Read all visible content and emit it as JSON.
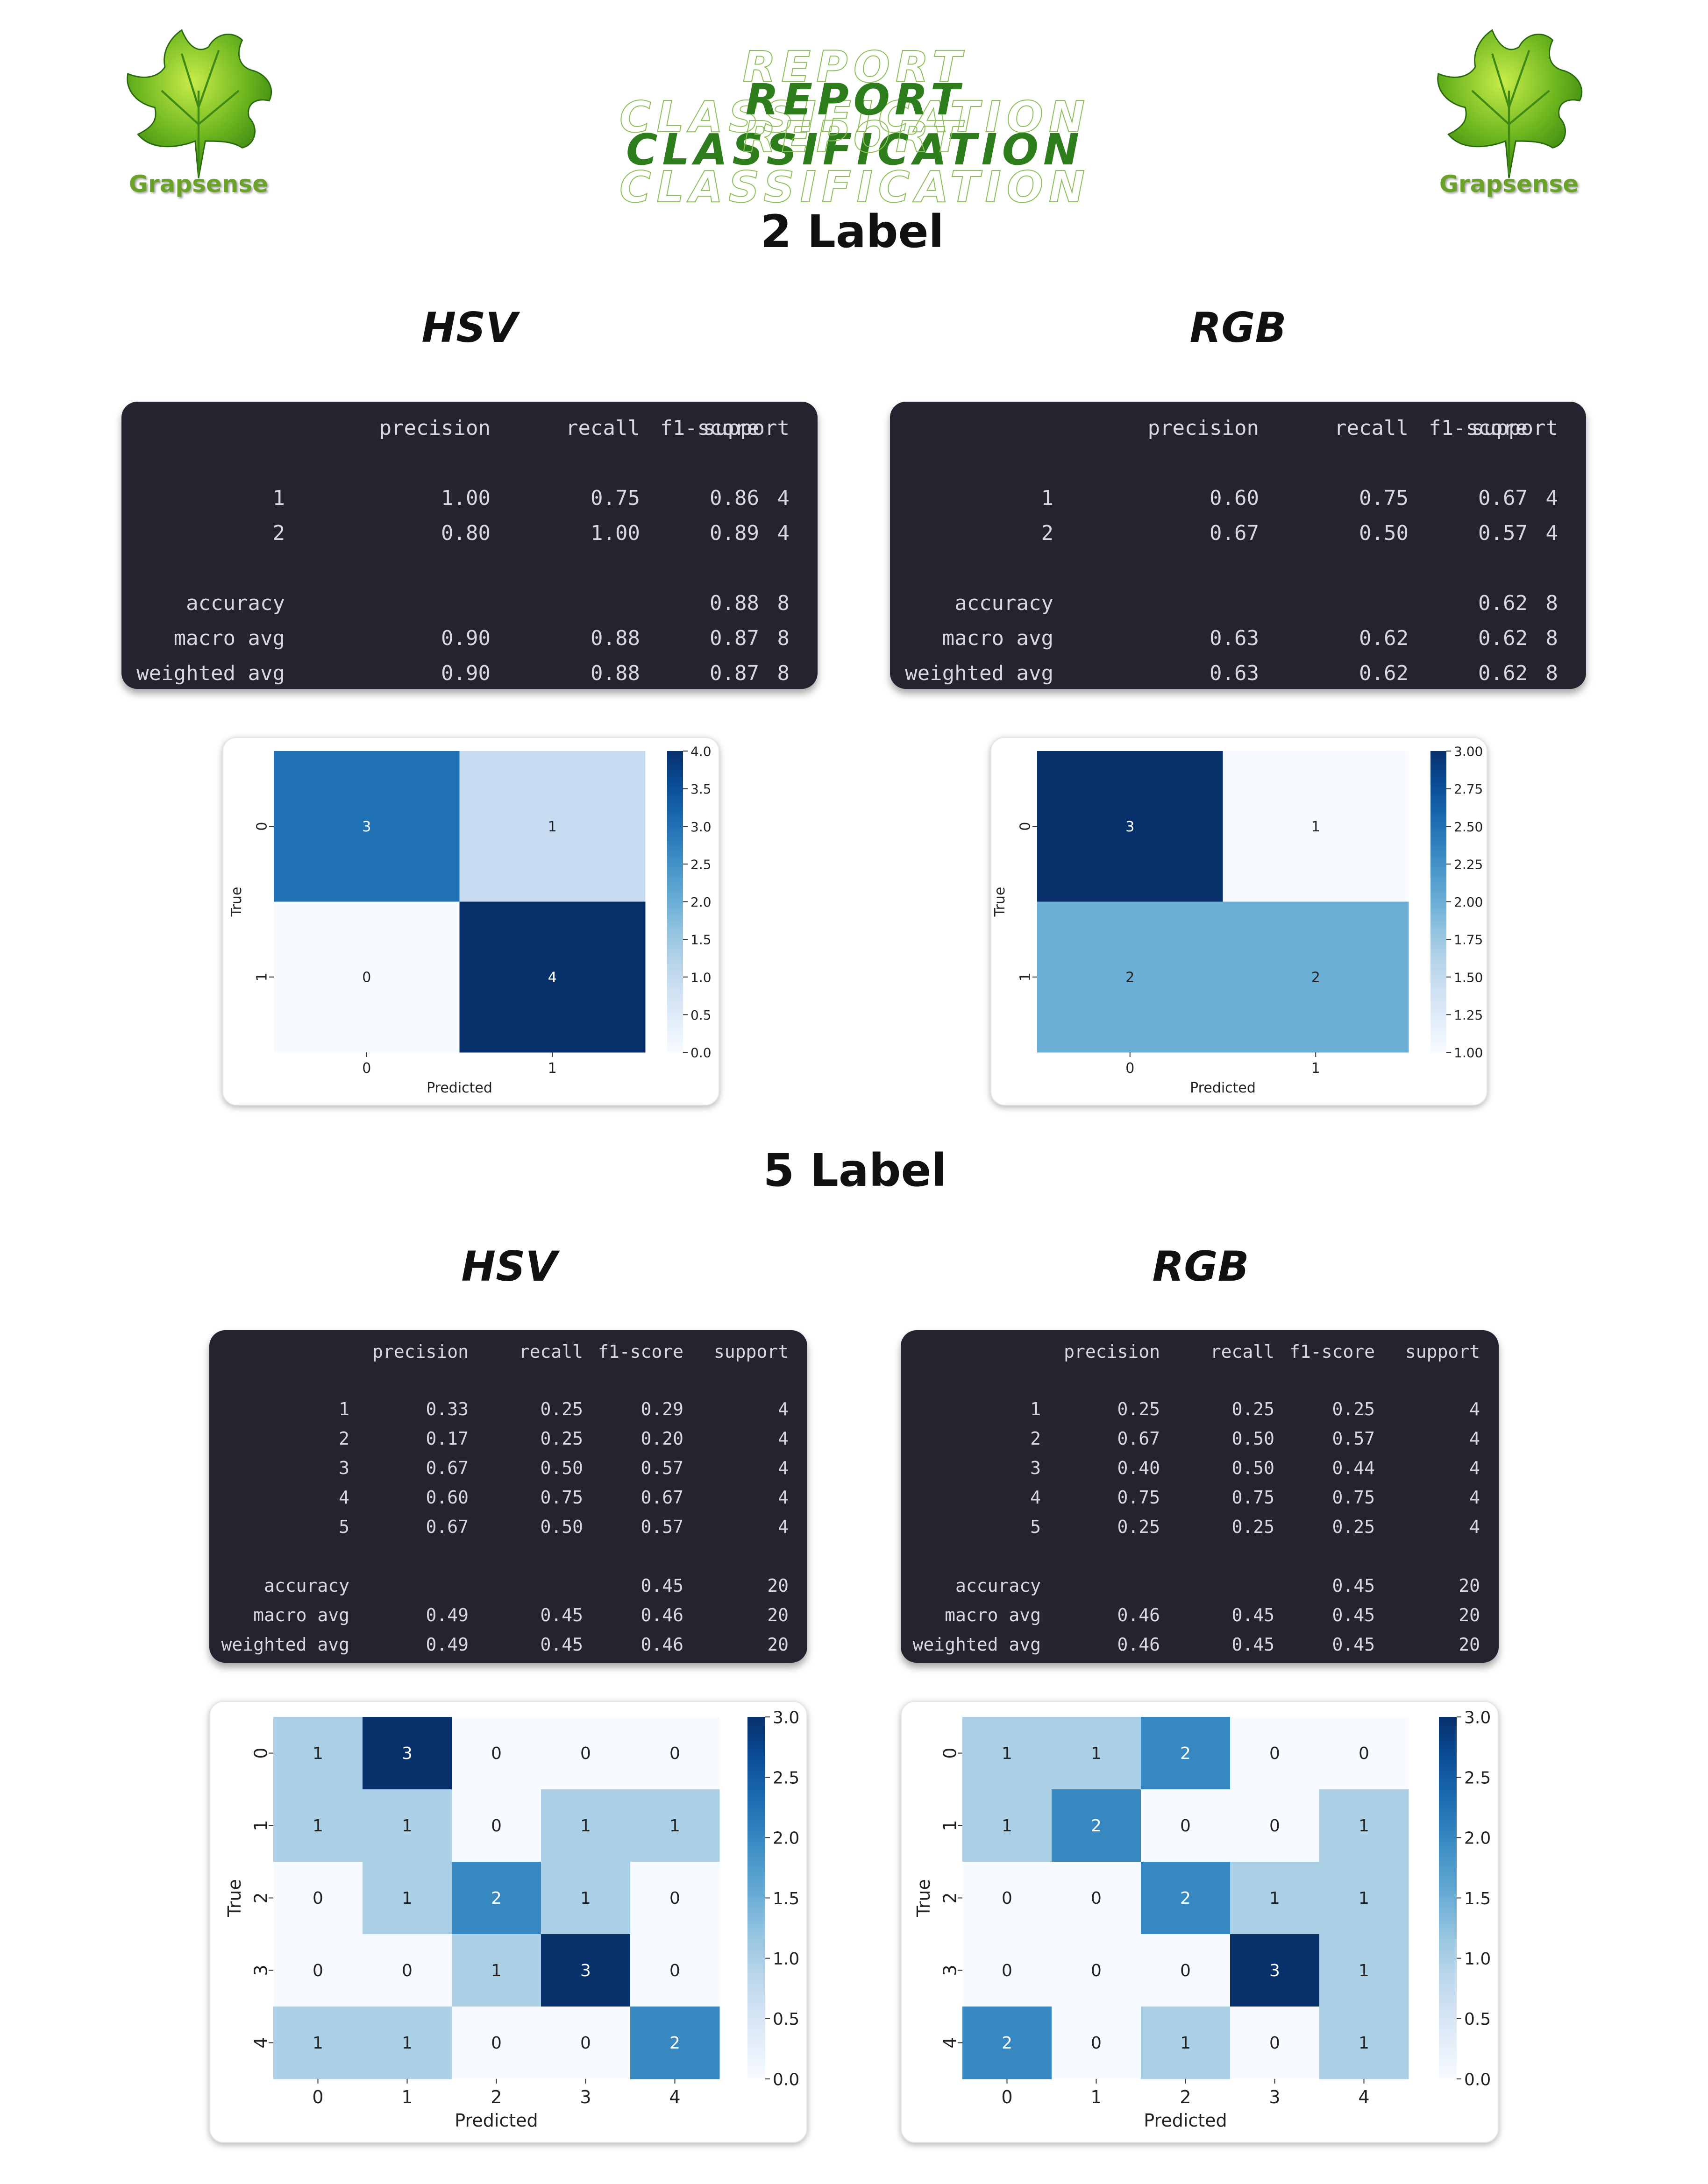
{
  "header": {
    "title": "REPORT CLASSIFICATION",
    "brand": "Grapsense"
  },
  "sections": [
    {
      "heading": "2 Label",
      "panels": [
        {
          "title": "HSV",
          "report": {
            "columns": [
              "precision",
              "recall",
              "f1-score",
              "support"
            ],
            "rows": [
              [
                "1",
                "1.00",
                "0.75",
                "0.86",
                "4"
              ],
              [
                "2",
                "0.80",
                "1.00",
                "0.89",
                "4"
              ],
              [
                "accuracy",
                "",
                "",
                "0.88",
                "8"
              ],
              [
                "macro avg",
                "0.90",
                "0.88",
                "0.87",
                "8"
              ],
              [
                "weighted avg",
                "0.90",
                "0.88",
                "0.87",
                "8"
              ]
            ]
          }
        },
        {
          "title": "RGB",
          "report": {
            "columns": [
              "precision",
              "recall",
              "f1-score",
              "support"
            ],
            "rows": [
              [
                "1",
                "0.60",
                "0.75",
                "0.67",
                "4"
              ],
              [
                "2",
                "0.67",
                "0.50",
                "0.57",
                "4"
              ],
              [
                "accuracy",
                "",
                "",
                "0.62",
                "8"
              ],
              [
                "macro avg",
                "0.63",
                "0.62",
                "0.62",
                "8"
              ],
              [
                "weighted avg",
                "0.63",
                "0.62",
                "0.62",
                "8"
              ]
            ]
          }
        }
      ]
    },
    {
      "heading": "5 Label",
      "panels": [
        {
          "title": "HSV",
          "report": {
            "columns": [
              "precision",
              "recall",
              "f1-score",
              "support"
            ],
            "rows": [
              [
                "1",
                "0.33",
                "0.25",
                "0.29",
                "4"
              ],
              [
                "2",
                "0.17",
                "0.25",
                "0.20",
                "4"
              ],
              [
                "3",
                "0.67",
                "0.50",
                "0.57",
                "4"
              ],
              [
                "4",
                "0.60",
                "0.75",
                "0.67",
                "4"
              ],
              [
                "5",
                "0.67",
                "0.50",
                "0.57",
                "4"
              ],
              [
                "accuracy",
                "",
                "",
                "0.45",
                "20"
              ],
              [
                "macro avg",
                "0.49",
                "0.45",
                "0.46",
                "20"
              ],
              [
                "weighted avg",
                "0.49",
                "0.45",
                "0.46",
                "20"
              ]
            ]
          }
        },
        {
          "title": "RGB",
          "report": {
            "columns": [
              "precision",
              "recall",
              "f1-score",
              "support"
            ],
            "rows": [
              [
                "1",
                "0.25",
                "0.25",
                "0.25",
                "4"
              ],
              [
                "2",
                "0.67",
                "0.50",
                "0.57",
                "4"
              ],
              [
                "3",
                "0.40",
                "0.50",
                "0.44",
                "4"
              ],
              [
                "4",
                "0.75",
                "0.75",
                "0.75",
                "4"
              ],
              [
                "5",
                "0.25",
                "0.25",
                "0.25",
                "4"
              ],
              [
                "accuracy",
                "",
                "",
                "0.45",
                "20"
              ],
              [
                "macro avg",
                "0.46",
                "0.45",
                "0.45",
                "20"
              ],
              [
                "weighted avg",
                "0.46",
                "0.45",
                "0.45",
                "20"
              ]
            ]
          }
        }
      ]
    }
  ],
  "chart_data": [
    {
      "type": "heatmap",
      "title": "",
      "xlabel": "Predicted",
      "ylabel": "True",
      "x": [
        "0",
        "1"
      ],
      "y": [
        "0",
        "1"
      ],
      "values": [
        [
          3,
          1
        ],
        [
          0,
          4
        ]
      ],
      "colorbar": {
        "min": 0.0,
        "max": 4.0,
        "ticks": [
          "0.0",
          "0.5",
          "1.0",
          "1.5",
          "2.0",
          "2.5",
          "3.0",
          "3.5",
          "4.0"
        ]
      },
      "colormap": "Blues"
    },
    {
      "type": "heatmap",
      "title": "",
      "xlabel": "Predicted",
      "ylabel": "True",
      "x": [
        "0",
        "1"
      ],
      "y": [
        "0",
        "1"
      ],
      "values": [
        [
          3,
          1
        ],
        [
          2,
          2
        ]
      ],
      "colorbar": {
        "min": 1.0,
        "max": 3.0,
        "ticks": [
          "1.00",
          "1.25",
          "1.50",
          "1.75",
          "2.00",
          "2.25",
          "2.50",
          "2.75",
          "3.00"
        ]
      },
      "colormap": "Blues"
    },
    {
      "type": "heatmap",
      "title": "",
      "xlabel": "Predicted",
      "ylabel": "True",
      "x": [
        "0",
        "1",
        "2",
        "3",
        "4"
      ],
      "y": [
        "0",
        "1",
        "2",
        "3",
        "4"
      ],
      "values": [
        [
          1,
          3,
          0,
          0,
          0
        ],
        [
          1,
          1,
          0,
          1,
          1
        ],
        [
          0,
          1,
          2,
          1,
          0
        ],
        [
          0,
          0,
          1,
          3,
          0
        ],
        [
          1,
          1,
          0,
          0,
          2
        ]
      ],
      "colorbar": {
        "min": 0.0,
        "max": 3.0,
        "ticks": [
          "0.0",
          "0.5",
          "1.0",
          "1.5",
          "2.0",
          "2.5",
          "3.0"
        ]
      },
      "colormap": "Blues"
    },
    {
      "type": "heatmap",
      "title": "",
      "xlabel": "Predicted",
      "ylabel": "True",
      "x": [
        "0",
        "1",
        "2",
        "3",
        "4"
      ],
      "y": [
        "0",
        "1",
        "2",
        "3",
        "4"
      ],
      "values": [
        [
          1,
          1,
          2,
          0,
          0
        ],
        [
          1,
          2,
          0,
          0,
          1
        ],
        [
          0,
          0,
          2,
          1,
          1
        ],
        [
          0,
          0,
          0,
          3,
          1
        ],
        [
          2,
          0,
          1,
          0,
          1
        ]
      ],
      "colorbar": {
        "min": 0.0,
        "max": 3.0,
        "ticks": [
          "0.0",
          "0.5",
          "1.0",
          "1.5",
          "2.0",
          "2.5",
          "3.0"
        ]
      },
      "colormap": "Blues"
    }
  ]
}
